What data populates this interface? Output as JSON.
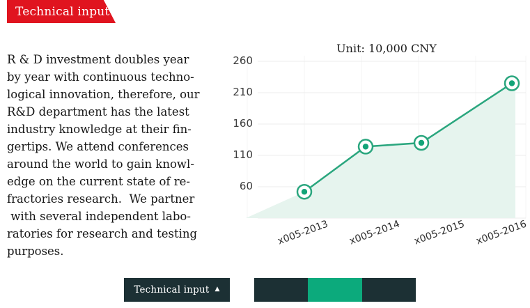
{
  "banner": {
    "label": "Technical input"
  },
  "article": {
    "body": "R & D investment doubles year\nby year with continuous techno-\nlogical innovation, therefore, our\nR&D department has the latest\nindustry knowledge at their fin-\ngertips. We attend conferences\naround the world to gain knowl-\nedge on the current state of re-\nfractories research.  We partner\n with several independent labo-\nratories for research and testing\npurposes."
  },
  "chart_data": {
    "type": "area",
    "title": "Unit: 10,000 CNY",
    "categories": [
      "x005-2013",
      "x005-2014",
      "x005-2015",
      "x005-2016"
    ],
    "values": [
      52,
      124,
      130,
      225
    ],
    "yticks": [
      60,
      110,
      160,
      210,
      260
    ],
    "ylim": [
      10,
      270
    ],
    "xlabel": "",
    "ylabel": "",
    "grid": true,
    "legend": false,
    "colors": {
      "line": "#2aa67e",
      "marker": "#12a478",
      "fill": "#e6f4ee",
      "grid": "#ededed",
      "vgrid": "#f4f4f4"
    }
  },
  "footer": {
    "button_label": "Technical input",
    "button_icon": "▲",
    "segments": [
      "#1c3034",
      "#0caa7c",
      "#1c3034"
    ]
  },
  "colors": {
    "banner_red": "#e0141f",
    "dark_navy": "#1c3034"
  }
}
